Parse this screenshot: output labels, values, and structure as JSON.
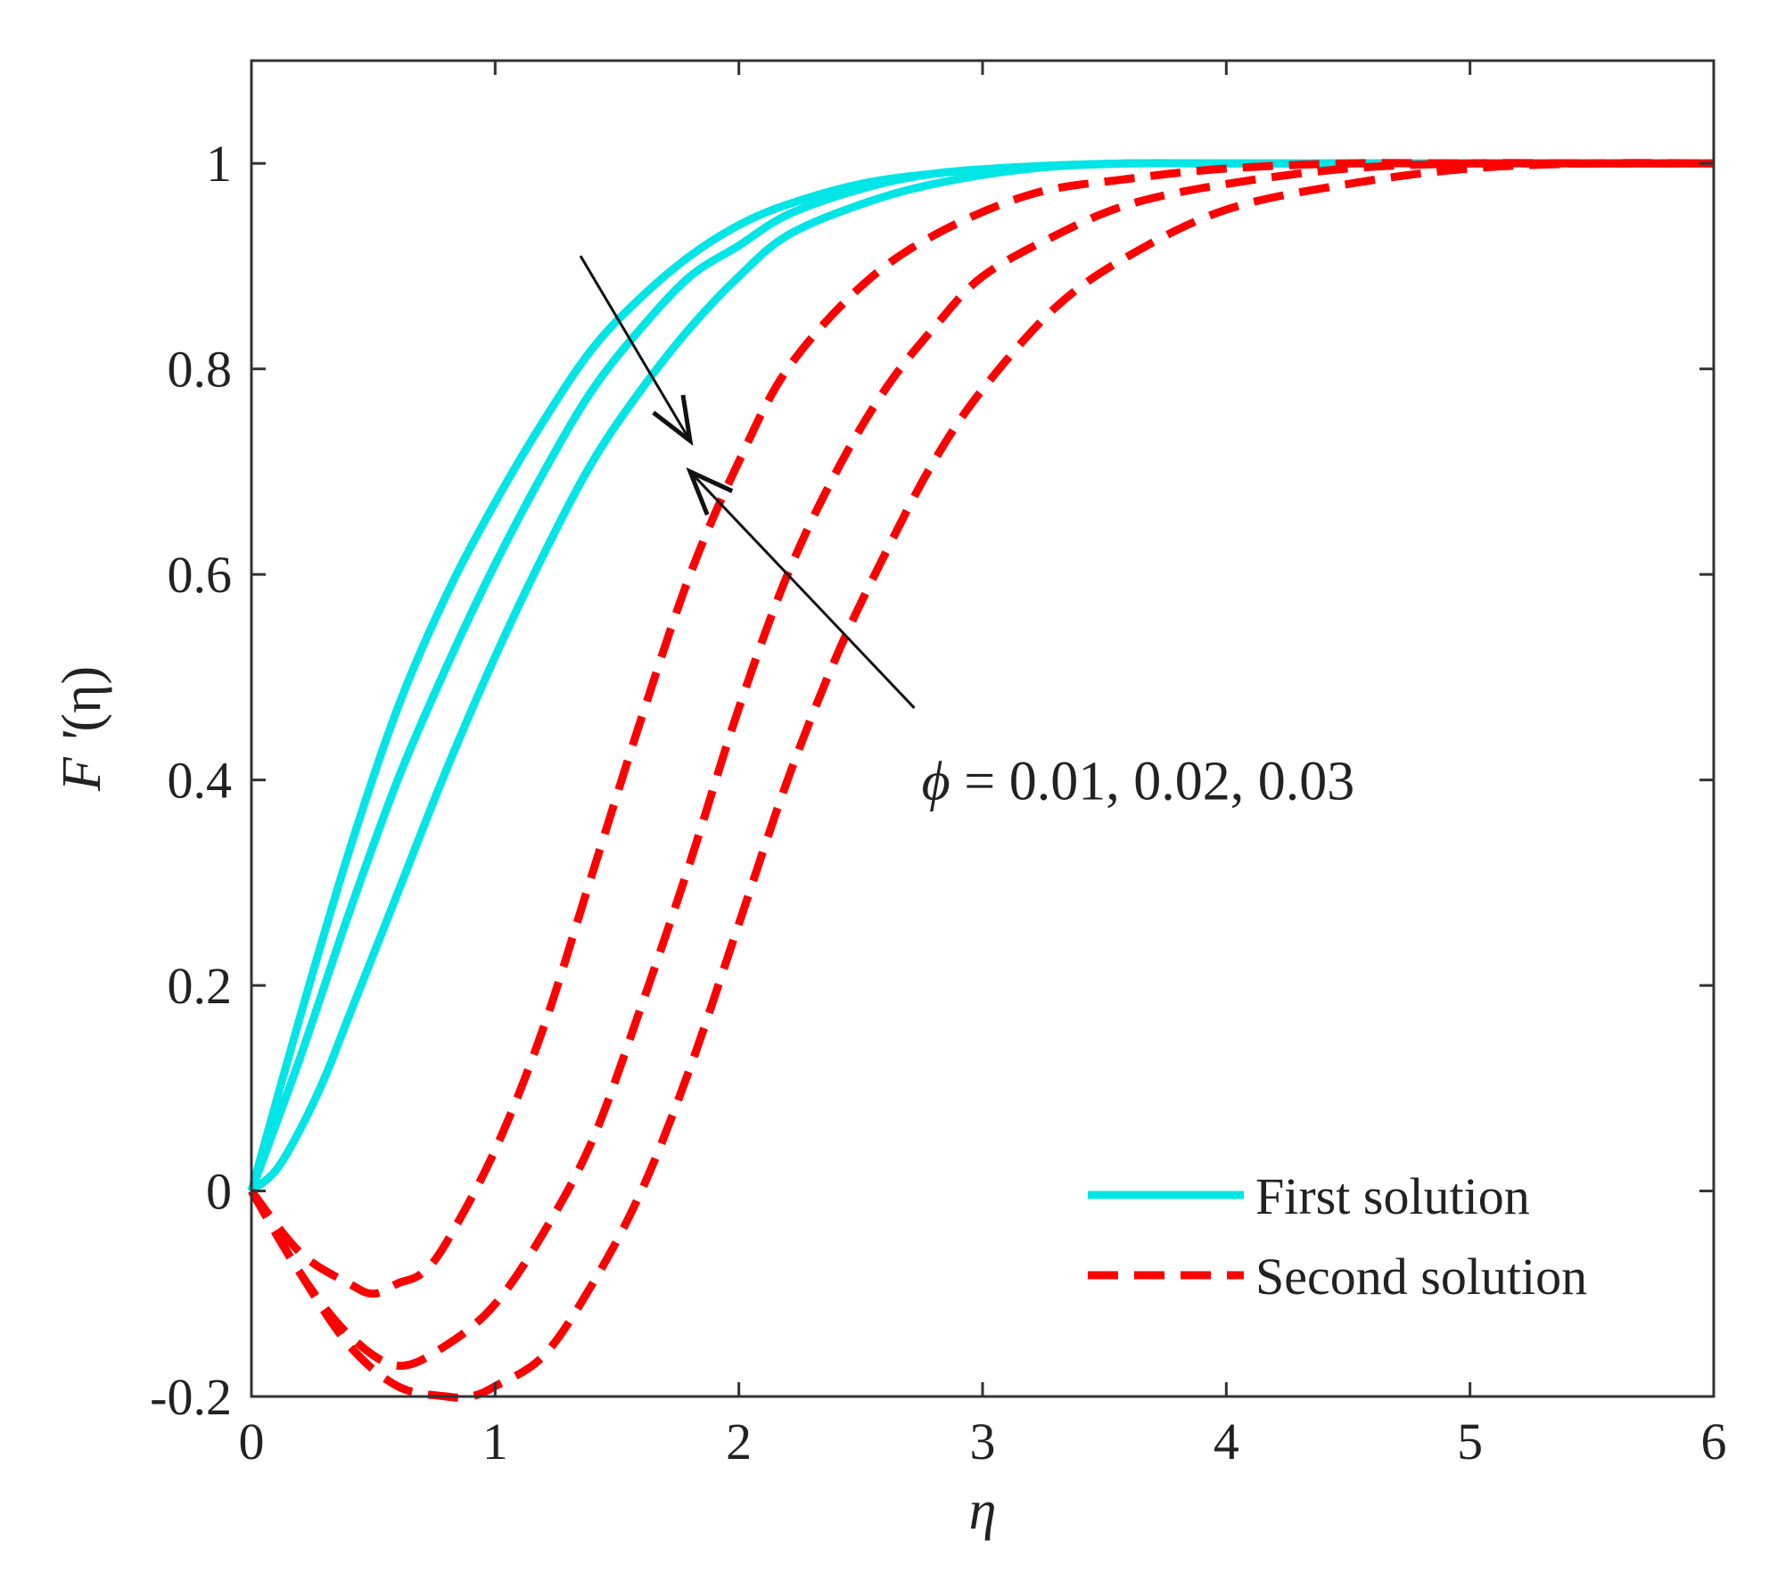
{
  "chart_data": {
    "type": "line",
    "title": "",
    "xlabel": "η",
    "ylabel_prefix": "F '",
    "ylabel_suffix": "(η)",
    "xlim": [
      0,
      6
    ],
    "ylim": [
      -0.2,
      1.1
    ],
    "xticks": [
      0,
      1,
      2,
      3,
      4,
      5,
      6
    ],
    "xtick_labels": [
      "0",
      "1",
      "2",
      "3",
      "4",
      "5",
      "6"
    ],
    "yticks": [
      -0.2,
      0,
      0.2,
      0.4,
      0.6,
      0.8,
      1
    ],
    "ytick_labels": [
      "-0.2",
      "0",
      "0.2",
      "0.4",
      "0.6",
      "0.8",
      "1"
    ],
    "grid": false,
    "legend_position": "bottom-right",
    "legend": [
      {
        "label": "First solution",
        "style": "solid",
        "color": "#00e5e5"
      },
      {
        "label": "Second solution",
        "style": "dashed",
        "color": "#ff0000"
      }
    ],
    "annotation": {
      "symbol": "ϕ",
      "text": " = 0.01, 0.02, 0.03"
    },
    "series": [
      {
        "name": "First solution (ϕ = 0.01)",
        "group": "first",
        "x": [
          0,
          0.2,
          0.4,
          0.6,
          0.8,
          1.0,
          1.2,
          1.4,
          1.6,
          1.8,
          2.0,
          2.2,
          2.5,
          2.8,
          3.2,
          3.6,
          4.0,
          5.0,
          6.0
        ],
        "y": [
          0,
          0.17,
          0.33,
          0.47,
          0.58,
          0.67,
          0.75,
          0.82,
          0.87,
          0.91,
          0.94,
          0.96,
          0.98,
          0.99,
          0.997,
          1.0,
          1.0,
          1.0,
          1.0
        ]
      },
      {
        "name": "First solution (ϕ = 0.02)",
        "group": "first",
        "x": [
          0,
          0.2,
          0.4,
          0.6,
          0.8,
          1.0,
          1.2,
          1.4,
          1.6,
          1.8,
          2.0,
          2.2,
          2.5,
          2.8,
          3.2,
          3.6,
          4.0,
          5.0,
          6.0
        ],
        "y": [
          0,
          0.13,
          0.27,
          0.4,
          0.51,
          0.61,
          0.7,
          0.78,
          0.84,
          0.89,
          0.92,
          0.95,
          0.975,
          0.99,
          0.997,
          1.0,
          1.0,
          1.0,
          1.0
        ]
      },
      {
        "name": "First solution (ϕ = 0.03)",
        "group": "first",
        "x": [
          0,
          0.1,
          0.2,
          0.3,
          0.4,
          0.6,
          0.8,
          1.0,
          1.2,
          1.4,
          1.6,
          1.8,
          2.0,
          2.2,
          2.5,
          2.8,
          3.2,
          3.6,
          4.0,
          5.0,
          6.0
        ],
        "y": [
          0,
          0.02,
          0.06,
          0.11,
          0.17,
          0.29,
          0.41,
          0.52,
          0.62,
          0.71,
          0.78,
          0.84,
          0.89,
          0.93,
          0.96,
          0.98,
          0.995,
          1.0,
          1.0,
          1.0,
          1.0
        ]
      },
      {
        "name": "Second solution (ϕ = 0.01)",
        "group": "second",
        "x": [
          0,
          0.2,
          0.4,
          0.5,
          0.6,
          0.7,
          0.8,
          1.0,
          1.2,
          1.4,
          1.6,
          1.8,
          2.0,
          2.2,
          2.5,
          2.8,
          3.2,
          3.6,
          4.0,
          4.5,
          5.0,
          5.5,
          6.0
        ],
        "y": [
          0,
          -0.06,
          -0.09,
          -0.1,
          -0.09,
          -0.08,
          -0.05,
          0.04,
          0.16,
          0.31,
          0.46,
          0.6,
          0.71,
          0.8,
          0.88,
          0.93,
          0.97,
          0.985,
          0.995,
          1.0,
          1.0,
          1.0,
          1.0
        ]
      },
      {
        "name": "Second solution (ϕ = 0.02)",
        "group": "second",
        "x": [
          0,
          0.2,
          0.4,
          0.6,
          0.8,
          1.0,
          1.2,
          1.4,
          1.6,
          1.8,
          2.0,
          2.2,
          2.4,
          2.6,
          2.8,
          3.0,
          3.3,
          3.6,
          4.0,
          4.5,
          5.0,
          5.5,
          6.0
        ],
        "y": [
          0,
          -0.08,
          -0.14,
          -0.17,
          -0.15,
          -0.11,
          -0.04,
          0.05,
          0.18,
          0.32,
          0.47,
          0.6,
          0.7,
          0.78,
          0.84,
          0.89,
          0.93,
          0.96,
          0.98,
          0.995,
          1.0,
          1.0,
          1.0
        ]
      },
      {
        "name": "Second solution (ϕ = 0.03)",
        "group": "second",
        "x": [
          0,
          0.2,
          0.4,
          0.6,
          0.8,
          0.9,
          1.0,
          1.2,
          1.4,
          1.6,
          1.8,
          2.0,
          2.2,
          2.4,
          2.6,
          2.8,
          3.0,
          3.3,
          3.6,
          4.0,
          4.5,
          5.0,
          5.5,
          6.0
        ],
        "y": [
          0,
          -0.08,
          -0.15,
          -0.19,
          -0.2,
          -0.2,
          -0.19,
          -0.16,
          -0.09,
          0.0,
          0.12,
          0.26,
          0.4,
          0.52,
          0.62,
          0.71,
          0.78,
          0.86,
          0.91,
          0.955,
          0.98,
          0.995,
          1.0,
          1.0
        ]
      }
    ],
    "arrows": [
      {
        "name": "arrow-first-solution",
        "from": [
          1.35,
          0.91
        ],
        "to": [
          1.8,
          0.73
        ]
      },
      {
        "name": "arrow-second-solution",
        "from": [
          2.72,
          0.47
        ],
        "to": [
          1.8,
          0.7
        ]
      }
    ],
    "annotation_anchor": [
      2.75,
      0.4
    ]
  }
}
